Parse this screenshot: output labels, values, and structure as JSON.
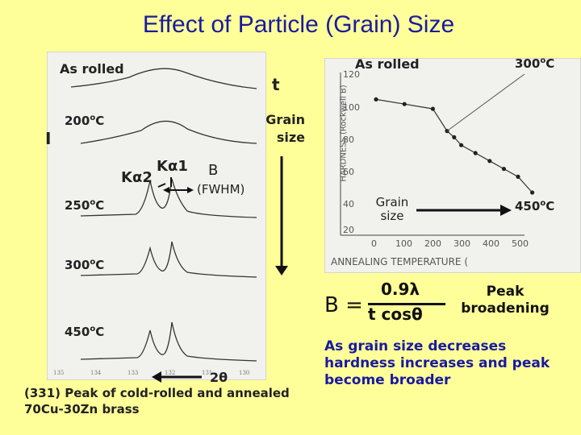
{
  "title": "Effect of Particle (Grain) Size",
  "left_panel": {
    "labels": {
      "as_rolled": "As rolled",
      "t200": "200",
      "t250": "250",
      "t300": "300",
      "t450": "450",
      "deg": "o",
      "unit": "C",
      "intensity_axis": "I",
      "t_arrow": "t",
      "grain_size": "Grain size",
      "ka1": "Kα1",
      "ka2": "Kα2",
      "b_label": "B",
      "fwhm": "(FWHM)",
      "two_theta": "2θ"
    },
    "caption": "(331) Peak of cold-rolled and annealed 70Cu-30Zn brass",
    "ticks": [
      "135",
      "134",
      "133",
      "132",
      "131",
      "130"
    ]
  },
  "right_panel": {
    "as_rolled": "As rolled",
    "t300": "300",
    "t450": "450",
    "deg": "o",
    "unit": "C",
    "grain_size": "Grain size",
    "y_axis_label": "HARDNESS (Rockwell B)",
    "x_axis_label": "ANNEALING TEMPERATURE (",
    "y_ticks": [
      "120",
      "100",
      "80",
      "60",
      "40",
      "20"
    ],
    "x_ticks": [
      "0",
      "100",
      "200",
      "300",
      "400",
      "500"
    ]
  },
  "formula": {
    "lhs": "B =",
    "numerator": "0.9λ",
    "denominator": "t cosθ"
  },
  "peak_broadening": "Peak broadening",
  "conclusion": "As grain size decreases hardness increases and peak become broader",
  "chart_data": {
    "type": "scatter",
    "xlabel": "ANNEALING TEMPERATURE (",
    "ylabel": "HARDNESS (Rockwell B)",
    "xlim": [
      0,
      600
    ],
    "ylim": [
      20,
      120
    ],
    "series": [
      {
        "values": [
          [
            0,
            104
          ],
          [
            100,
            101
          ],
          [
            200,
            98
          ],
          [
            250,
            84
          ],
          [
            275,
            80
          ],
          [
            300,
            75
          ],
          [
            350,
            70
          ],
          [
            400,
            65
          ],
          [
            450,
            60
          ],
          [
            500,
            55
          ],
          [
            550,
            45
          ]
        ]
      }
    ]
  }
}
